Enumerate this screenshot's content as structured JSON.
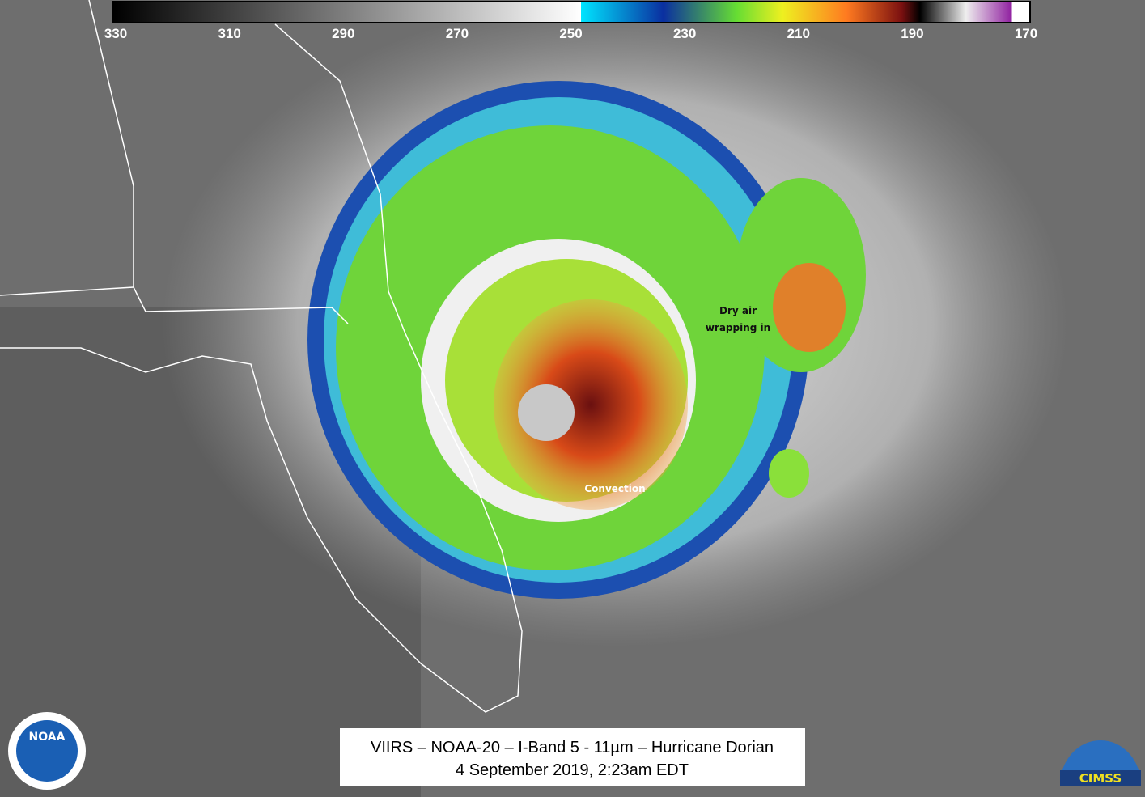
{
  "colorbar": {
    "ticks": [
      "330",
      "310",
      "290",
      "270",
      "250",
      "230",
      "210",
      "190",
      "170"
    ]
  },
  "annotations": {
    "dry_air": [
      "Dry air",
      "wrapping in"
    ],
    "convection": "Convection"
  },
  "caption": {
    "line1": "VIIRS – NOAA-20 – I-Band 5 - 11µm – Hurricane Dorian",
    "line2": "4 September 2019, 2:23am EDT"
  },
  "logos": {
    "left": "NOAA",
    "right": "CIMSS"
  }
}
